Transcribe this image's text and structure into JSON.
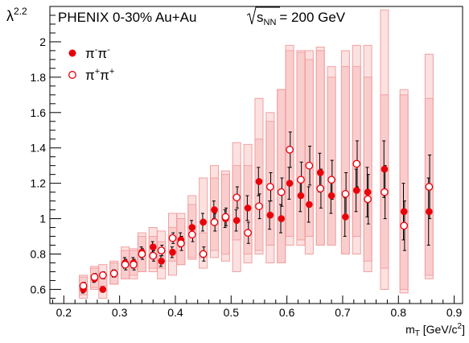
{
  "chart_data": {
    "type": "scatter",
    "title": "PHENIX 0-30%  Au+Au",
    "energy_label": {
      "prefix": "√",
      "base": "s",
      "sub": "NN",
      "value": "= 200 GeV"
    },
    "xlabel": {
      "base": "m",
      "sub": "T",
      "rest": " [GeV/c",
      "sup": "2",
      "close": "]"
    },
    "ylabel": {
      "base": "λ",
      "sup": "2.2"
    },
    "xlim": [
      0.175,
      0.915
    ],
    "ylim": [
      0.52,
      2.2
    ],
    "x_ticks": [
      "0.2",
      "0.3",
      "0.4",
      "0.5",
      "0.6",
      "0.7",
      "0.8",
      "0.9"
    ],
    "y_ticks": [
      "0.6",
      "0.8",
      "1",
      "1.2",
      "1.4",
      "1.6",
      "1.8",
      "2"
    ],
    "grid": false,
    "legend": "top-left",
    "series": [
      {
        "name_base": "π",
        "name_sup1": "-",
        "name_mid": "π",
        "name_sup2": "-",
        "marker": "filled-circle",
        "color": "#e8000b",
        "points": [
          {
            "x": 0.235,
            "y": 0.6,
            "err": 0.02,
            "sys": [
              0.55,
              0.67
            ]
          },
          {
            "x": 0.255,
            "y": 0.66,
            "err": 0.02,
            "sys": [
              0.6,
              0.72
            ]
          },
          {
            "x": 0.27,
            "y": 0.6,
            "err": 0.015,
            "sys": [
              0.55,
              0.66
            ]
          },
          {
            "x": 0.29,
            "y": 0.69,
            "err": 0.02,
            "sys": [
              0.63,
              0.76
            ]
          },
          {
            "x": 0.31,
            "y": 0.75,
            "err": 0.03,
            "sys": [
              0.66,
              0.84
            ]
          },
          {
            "x": 0.325,
            "y": 0.75,
            "err": 0.03,
            "sys": [
              0.68,
              0.83
            ]
          },
          {
            "x": 0.34,
            "y": 0.81,
            "err": 0.03,
            "sys": [
              0.7,
              0.92
            ]
          },
          {
            "x": 0.36,
            "y": 0.84,
            "err": 0.03,
            "sys": [
              0.72,
              0.95
            ]
          },
          {
            "x": 0.375,
            "y": 0.76,
            "err": 0.03,
            "sys": [
              0.66,
              0.87
            ]
          },
          {
            "x": 0.395,
            "y": 0.81,
            "err": 0.03,
            "sys": [
              0.68,
              0.95
            ]
          },
          {
            "x": 0.41,
            "y": 0.88,
            "err": 0.04,
            "sys": [
              0.74,
              1.03
            ]
          },
          {
            "x": 0.43,
            "y": 0.95,
            "err": 0.04,
            "sys": [
              0.78,
              1.13
            ]
          },
          {
            "x": 0.45,
            "y": 0.98,
            "err": 0.05,
            "sys": [
              0.78,
              1.23
            ]
          },
          {
            "x": 0.47,
            "y": 1.05,
            "err": 0.05,
            "sys": [
              0.82,
              1.3
            ]
          },
          {
            "x": 0.49,
            "y": 1.0,
            "err": 0.05,
            "sys": [
              0.76,
              1.27
            ]
          },
          {
            "x": 0.51,
            "y": 0.99,
            "err": 0.06,
            "sys": [
              0.7,
              1.3
            ]
          },
          {
            "x": 0.53,
            "y": 1.06,
            "err": 0.07,
            "sys": [
              0.8,
              1.42
            ]
          },
          {
            "x": 0.55,
            "y": 1.21,
            "err": 0.08,
            "sys": [
              0.82,
              1.68
            ]
          },
          {
            "x": 0.57,
            "y": 1.02,
            "err": 0.08,
            "sys": [
              0.75,
              1.55
            ]
          },
          {
            "x": 0.59,
            "y": 1.0,
            "err": 0.08,
            "sys": [
              0.75,
              1.73
            ]
          },
          {
            "x": 0.605,
            "y": 1.2,
            "err": 0.09,
            "sys": [
              0.85,
              1.95
            ]
          },
          {
            "x": 0.625,
            "y": 1.13,
            "err": 0.09,
            "sys": [
              0.85,
              1.94
            ]
          },
          {
            "x": 0.64,
            "y": 1.08,
            "err": 0.1,
            "sys": [
              0.8,
              1.9
            ]
          },
          {
            "x": 0.66,
            "y": 1.26,
            "err": 0.11,
            "sys": [
              0.85,
              1.97
            ]
          },
          {
            "x": 0.68,
            "y": 1.13,
            "err": 0.1,
            "sys": [
              0.85,
              1.8
            ]
          },
          {
            "x": 0.705,
            "y": 1.01,
            "err": 0.11,
            "sys": [
              0.8,
              1.95
            ]
          },
          {
            "x": 0.725,
            "y": 1.16,
            "err": 0.12,
            "sys": [
              0.8,
              1.86
            ]
          },
          {
            "x": 0.745,
            "y": 1.15,
            "err": 0.14,
            "sys": [
              0.76,
              1.98
            ]
          },
          {
            "x": 0.775,
            "y": 1.28,
            "err": 0.16,
            "sys": [
              0.6,
              2.18
            ]
          },
          {
            "x": 0.81,
            "y": 1.04,
            "err": 0.16,
            "sys": [
              0.6,
              1.73
            ]
          },
          {
            "x": 0.855,
            "y": 1.04,
            "err": 0.19,
            "sys": [
              0.68,
              1.68
            ]
          }
        ]
      },
      {
        "name_base": "π",
        "name_sup1": "+",
        "name_mid": "π",
        "name_sup2": "+",
        "marker": "open-circle",
        "color": "#e8000b",
        "points": [
          {
            "x": 0.235,
            "y": 0.62,
            "err": 0.02,
            "sys": [
              0.57,
              0.68
            ]
          },
          {
            "x": 0.255,
            "y": 0.67,
            "err": 0.02,
            "sys": [
              0.61,
              0.73
            ]
          },
          {
            "x": 0.27,
            "y": 0.68,
            "err": 0.02,
            "sys": [
              0.62,
              0.74
            ]
          },
          {
            "x": 0.29,
            "y": 0.69,
            "err": 0.02,
            "sys": [
              0.63,
              0.75
            ]
          },
          {
            "x": 0.31,
            "y": 0.74,
            "err": 0.03,
            "sys": [
              0.66,
              0.82
            ]
          },
          {
            "x": 0.325,
            "y": 0.74,
            "err": 0.03,
            "sys": [
              0.66,
              0.82
            ]
          },
          {
            "x": 0.34,
            "y": 0.8,
            "err": 0.03,
            "sys": [
              0.7,
              0.9
            ]
          },
          {
            "x": 0.36,
            "y": 0.79,
            "err": 0.03,
            "sys": [
              0.7,
              0.9
            ]
          },
          {
            "x": 0.375,
            "y": 0.82,
            "err": 0.03,
            "sys": [
              0.72,
              0.93
            ]
          },
          {
            "x": 0.395,
            "y": 0.89,
            "err": 0.03,
            "sys": [
              0.76,
              1.03
            ]
          },
          {
            "x": 0.41,
            "y": 0.86,
            "err": 0.04,
            "sys": [
              0.74,
              1.0
            ]
          },
          {
            "x": 0.43,
            "y": 0.91,
            "err": 0.04,
            "sys": [
              0.77,
              1.08
            ]
          },
          {
            "x": 0.45,
            "y": 0.8,
            "err": 0.04,
            "sys": [
              0.72,
              0.92
            ]
          },
          {
            "x": 0.47,
            "y": 0.98,
            "err": 0.05,
            "sys": [
              0.78,
              1.23
            ]
          },
          {
            "x": 0.49,
            "y": 1.01,
            "err": 0.05,
            "sys": [
              0.8,
              1.25
            ]
          },
          {
            "x": 0.51,
            "y": 1.12,
            "err": 0.06,
            "sys": [
              0.88,
              1.43
            ]
          },
          {
            "x": 0.53,
            "y": 0.92,
            "err": 0.06,
            "sys": [
              0.75,
              1.3
            ]
          },
          {
            "x": 0.55,
            "y": 1.07,
            "err": 0.07,
            "sys": [
              0.8,
              1.45
            ]
          },
          {
            "x": 0.57,
            "y": 1.18,
            "err": 0.08,
            "sys": [
              0.85,
              1.6
            ]
          },
          {
            "x": 0.59,
            "y": 1.15,
            "err": 0.08,
            "sys": [
              0.75,
              1.73
            ]
          },
          {
            "x": 0.605,
            "y": 1.39,
            "err": 0.1,
            "sys": [
              0.9,
              1.98
            ]
          },
          {
            "x": 0.625,
            "y": 1.22,
            "err": 0.1,
            "sys": [
              0.88,
              1.95
            ]
          },
          {
            "x": 0.64,
            "y": 1.3,
            "err": 0.11,
            "sys": [
              0.9,
              1.95
            ]
          },
          {
            "x": 0.66,
            "y": 1.17,
            "err": 0.11,
            "sys": [
              0.85,
              1.95
            ]
          },
          {
            "x": 0.68,
            "y": 1.22,
            "err": 0.11,
            "sys": [
              0.85,
              1.86
            ]
          },
          {
            "x": 0.705,
            "y": 1.14,
            "err": 0.12,
            "sys": [
              0.8,
              1.86
            ]
          },
          {
            "x": 0.725,
            "y": 1.31,
            "err": 0.13,
            "sys": [
              0.9,
              1.98
            ]
          },
          {
            "x": 0.745,
            "y": 1.11,
            "err": 0.14,
            "sys": [
              0.7,
              1.8
            ]
          },
          {
            "x": 0.775,
            "y": 1.15,
            "err": 0.15,
            "sys": [
              0.72,
              1.7
            ]
          },
          {
            "x": 0.81,
            "y": 0.96,
            "err": 0.14,
            "sys": [
              0.58,
              1.7
            ]
          },
          {
            "x": 0.855,
            "y": 1.18,
            "err": 0.18,
            "sys": [
              0.66,
              1.93
            ]
          }
        ]
      }
    ]
  }
}
